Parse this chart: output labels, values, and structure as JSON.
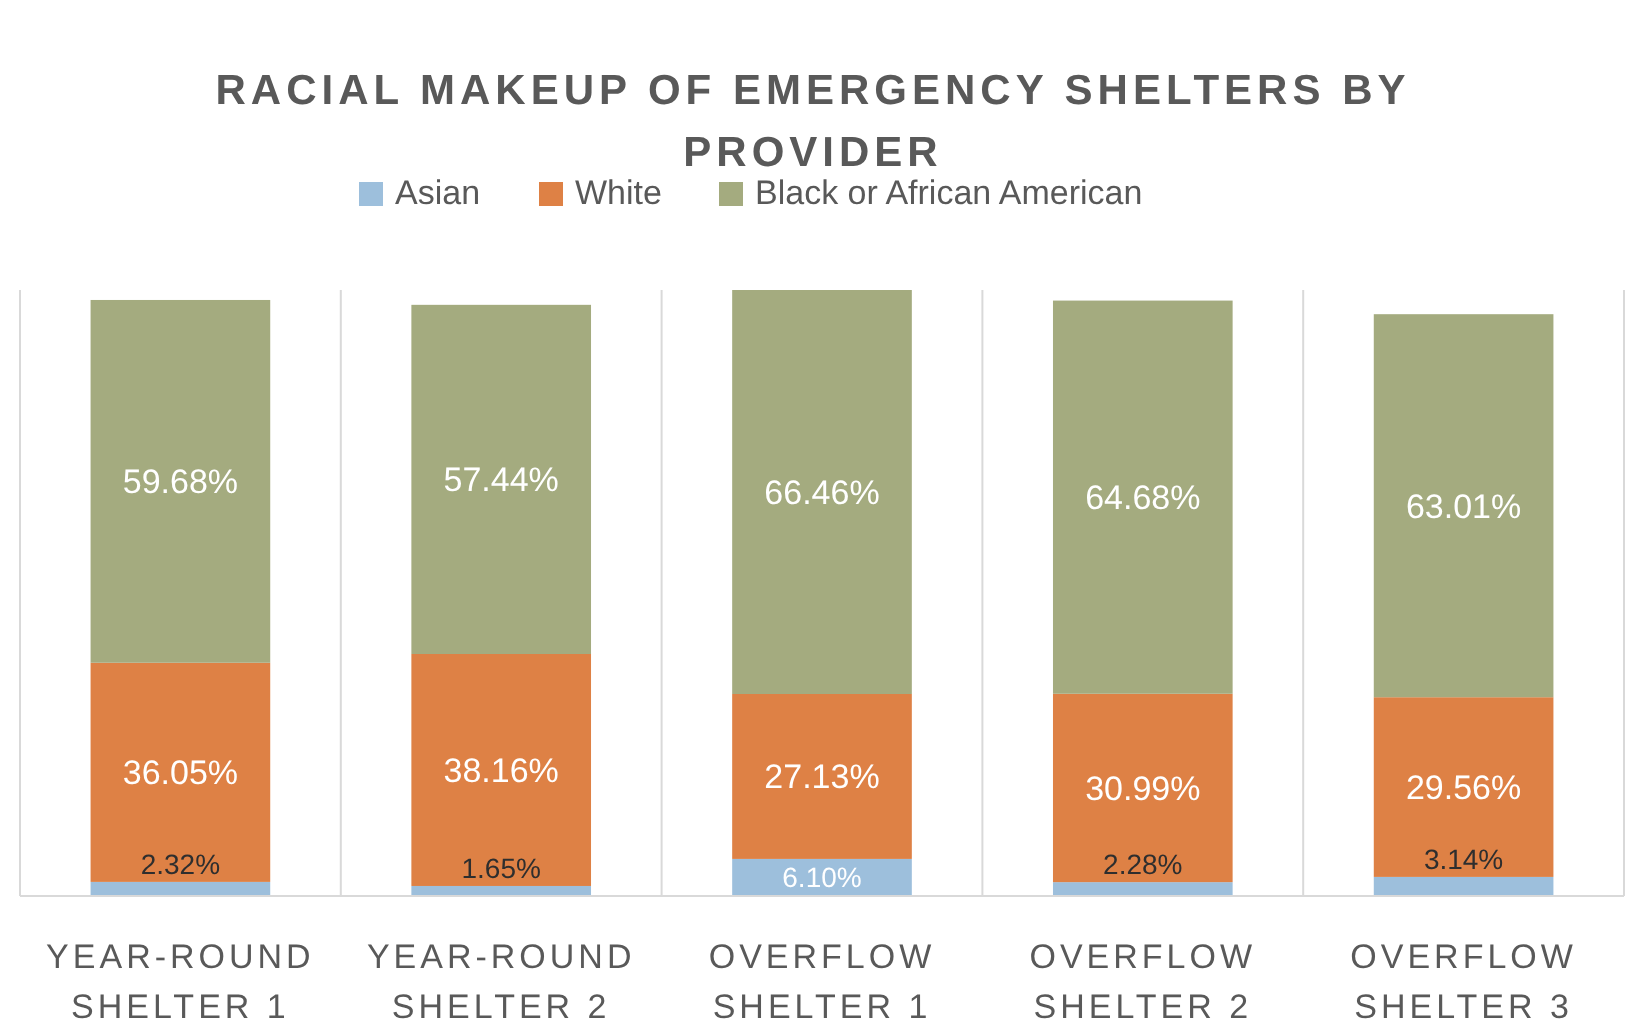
{
  "chart_data": {
    "type": "bar",
    "title": "RACIAL MAKEUP OF EMERGENCY SHELTERS BY PROVIDER",
    "categories": [
      "YEAR-ROUND SHELTER 1",
      "YEAR-ROUND SHELTER 2",
      "OVERFLOW SHELTER 1",
      "OVERFLOW SHELTER 2",
      "OVERFLOW SHELTER 3"
    ],
    "stacked": true,
    "grid": "x",
    "legend": "top",
    "tick_labels": "x",
    "series": [
      {
        "name": "Asian",
        "color": "#9dbfdc",
        "values": [
          2.32,
          1.65,
          6.1,
          2.28,
          3.14
        ],
        "value_labels": [
          "2.32%",
          "1.65%",
          "6.10%",
          "2.28%",
          "3.14%"
        ]
      },
      {
        "name": "White",
        "color": "#de8145",
        "values": [
          36.05,
          38.16,
          27.13,
          30.99,
          29.56
        ],
        "value_labels": [
          "36.05%",
          "38.16%",
          "27.13%",
          "30.99%",
          "29.56%"
        ]
      },
      {
        "name": "Black or African American",
        "color": "#a4ab7f",
        "values": [
          59.68,
          57.44,
          66.46,
          64.68,
          63.01
        ],
        "value_labels": [
          "59.68%",
          "57.44%",
          "66.46%",
          "64.68%",
          "63.01%"
        ]
      }
    ]
  }
}
